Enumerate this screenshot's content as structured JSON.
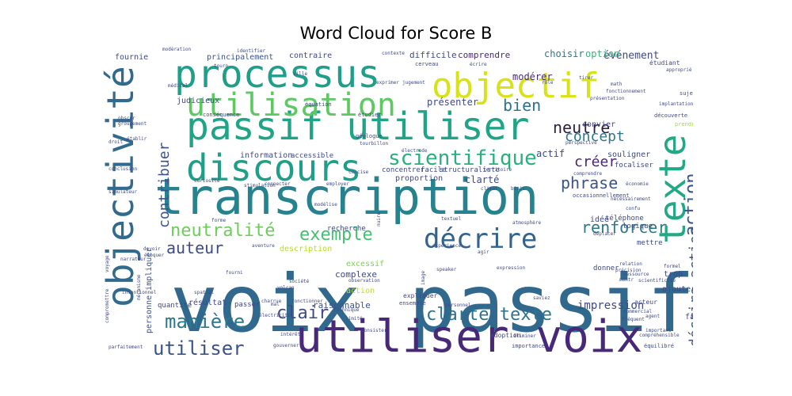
{
  "chart_data": {
    "type": "wordcloud",
    "title": "Word Cloud for Score B",
    "colormap": "viridis",
    "words": [
      {
        "text": "voix passif",
        "size": 100,
        "color": "#31688e"
      },
      {
        "text": "transcription",
        "size": 62,
        "color": "#26828e"
      },
      {
        "text": "utiliser voix",
        "size": 56,
        "color": "#482878"
      },
      {
        "text": "passif utiliser",
        "size": 48,
        "color": "#20a486"
      },
      {
        "text": "processus",
        "size": 48,
        "color": "#1f9e89"
      },
      {
        "text": "objectivité",
        "size": 46,
        "color": "#306a8e"
      },
      {
        "text": "discours",
        "size": 46,
        "color": "#1f9e89"
      },
      {
        "text": "texte",
        "size": 46,
        "color": "#22a884"
      },
      {
        "text": "objectif",
        "size": 44,
        "color": "#d8e219"
      },
      {
        "text": "utilisation",
        "size": 40,
        "color": "#5ec962"
      },
      {
        "text": "décrire",
        "size": 34,
        "color": "#33638d"
      },
      {
        "text": "scientifique",
        "size": 26,
        "color": "#2ab07f"
      },
      {
        "text": "manière",
        "size": 24,
        "color": "#2a788e"
      },
      {
        "text": "utiliser",
        "size": 24,
        "color": "#3b528b"
      },
      {
        "text": "neutralité",
        "size": 22,
        "color": "#6ccd5a"
      },
      {
        "text": "exemple",
        "size": 22,
        "color": "#44bf70"
      },
      {
        "text": "clarté texte",
        "size": 22,
        "color": "#2c728e"
      },
      {
        "text": "clair",
        "size": 22,
        "color": "#3e4989"
      },
      {
        "text": "neutre",
        "size": 20,
        "color": "#2d1e3e"
      },
      {
        "text": "bien",
        "size": 20,
        "color": "#2c728e"
      },
      {
        "text": "phrase",
        "size": 20,
        "color": "#3b528b"
      },
      {
        "text": "auteur",
        "size": 20,
        "color": "#3e4a89"
      },
      {
        "text": "renforcer",
        "size": 20,
        "color": "#2a788e"
      },
      {
        "text": "concept",
        "size": 18,
        "color": "#2a788e"
      },
      {
        "text": "créer",
        "size": 18,
        "color": "#482475"
      },
      {
        "text": "action",
        "size": 22,
        "color": "#3b528b"
      },
      {
        "text": "décrire action",
        "size": 18,
        "color": "#3b528b"
      },
      {
        "text": "contribuer",
        "size": 18,
        "color": "#3b528b"
      },
      {
        "text": "impression",
        "size": 14,
        "color": "#3e4989"
      },
      {
        "text": "événement",
        "size": 13,
        "color": "#3e4989"
      },
      {
        "text": "présenter",
        "size": 12,
        "color": "#3e4989"
      },
      {
        "text": "modérer",
        "size": 12,
        "color": "#482878"
      },
      {
        "text": "choisir",
        "size": 12,
        "color": "#2a788e"
      },
      {
        "text": "option",
        "size": 12,
        "color": "#35b779"
      },
      {
        "text": "difficile",
        "size": 11,
        "color": "#3e4989"
      },
      {
        "text": "comprendre",
        "size": 11,
        "color": "#482878"
      },
      {
        "text": "principalement",
        "size": 10,
        "color": "#3b528b"
      },
      {
        "text": "contraire",
        "size": 10,
        "color": "#3e4989"
      },
      {
        "text": "fournie",
        "size": 10,
        "color": "#3e4989"
      },
      {
        "text": "judicieux",
        "size": 10,
        "color": "#3e4989"
      },
      {
        "text": "information",
        "size": 10,
        "color": "#3e4989"
      },
      {
        "text": "actif",
        "size": 12,
        "color": "#3e4989"
      },
      {
        "text": "accessible",
        "size": 9,
        "color": "#3e4989"
      },
      {
        "text": "convier",
        "size": 10,
        "color": "#3e4989"
      },
      {
        "text": "souligner",
        "size": 10,
        "color": "#3e4989"
      },
      {
        "text": "focaliser",
        "size": 9,
        "color": "#3e4989"
      },
      {
        "text": "concentrer",
        "size": 9,
        "color": "#3e4989"
      },
      {
        "text": "facile",
        "size": 9,
        "color": "#3e4989"
      },
      {
        "text": "structuraliste",
        "size": 9,
        "color": "#3e4989"
      },
      {
        "text": "proportion",
        "size": 10,
        "color": "#3e4989"
      },
      {
        "text": "clarté",
        "size": 12,
        "color": "#3e4989"
      },
      {
        "text": "personne impliquer",
        "size": 10,
        "color": "#3b528b"
      },
      {
        "text": "recherche",
        "size": 9,
        "color": "#3e4989"
      },
      {
        "text": "idée",
        "size": 10,
        "color": "#3e4989"
      },
      {
        "text": "téléphone",
        "size": 9,
        "color": "#3e4989"
      },
      {
        "text": "logique",
        "size": 9,
        "color": "#3e4989"
      },
      {
        "text": "description",
        "size": 10,
        "color": "#b5de2b"
      },
      {
        "text": "excessif",
        "size": 10,
        "color": "#7ad151"
      },
      {
        "text": "complexe",
        "size": 11,
        "color": "#3e4989"
      },
      {
        "text": "action",
        "size": 10,
        "color": "#c2df23"
      },
      {
        "text": "raisonnable",
        "size": 11,
        "color": "#3b528b"
      },
      {
        "text": "résultat",
        "size": 10,
        "color": "#3e4989"
      },
      {
        "text": "passer",
        "size": 9,
        "color": "#3e4989"
      },
      {
        "text": "quantité",
        "size": 9,
        "color": "#3e4989"
      },
      {
        "text": "mettre",
        "size": 9,
        "color": "#3e4989"
      },
      {
        "text": "donner",
        "size": 9,
        "color": "#3e4989"
      },
      {
        "text": "trop",
        "size": 10,
        "color": "#3e4989"
      },
      {
        "text": "ajouter",
        "size": 10,
        "color": "#3e4989"
      },
      {
        "text": "fait",
        "size": 10,
        "color": "#3e4989"
      },
      {
        "text": "acteur",
        "size": 8,
        "color": "#3e4989"
      },
      {
        "text": "expliquer",
        "size": 8,
        "color": "#3e4989"
      },
      {
        "text": "adoption",
        "size": 8,
        "color": "#3e4989"
      },
      {
        "text": "importance",
        "size": 7,
        "color": "#3e4989"
      },
      {
        "text": "équilibré",
        "size": 7,
        "color": "#3e4989"
      },
      {
        "text": "étudiant",
        "size": 8,
        "color": "#3e4989"
      },
      {
        "text": "sujet",
        "size": 7,
        "color": "#3e4989"
      },
      {
        "text": "découverte",
        "size": 7,
        "color": "#3e4989"
      },
      {
        "text": "prendre",
        "size": 7,
        "color": "#a0da39"
      },
      {
        "text": "conséquence",
        "size": 7,
        "color": "#3e4989"
      },
      {
        "text": "équation",
        "size": 7,
        "color": "#3e4989"
      },
      {
        "text": "étudier",
        "size": 7,
        "color": "#3e4989"
      },
      {
        "text": "géologue",
        "size": 7,
        "color": "#3e4989"
      },
      {
        "text": "tourbillon",
        "size": 6,
        "color": "#3e4989"
      },
      {
        "text": "électrode",
        "size": 6,
        "color": "#3e4989"
      },
      {
        "text": "curiosité",
        "size": 6,
        "color": "#3e4989"
      },
      {
        "text": "stimulation",
        "size": 6,
        "color": "#3e4989"
      },
      {
        "text": "nuire",
        "size": 6,
        "color": "#3e4989"
      },
      {
        "text": "climat",
        "size": 6,
        "color": "#3e4989"
      },
      {
        "text": "modélise",
        "size": 6,
        "color": "#3e4989"
      },
      {
        "text": "forme",
        "size": 6,
        "color": "#3e4989"
      },
      {
        "text": "fourni",
        "size": 6,
        "color": "#3e4989"
      },
      {
        "text": "observation",
        "size": 6,
        "color": "#3e4989"
      },
      {
        "text": "ensemble",
        "size": 7,
        "color": "#3e4989"
      },
      {
        "text": "gouverner",
        "size": 6,
        "color": "#3e4989"
      },
      {
        "text": "technique",
        "size": 6,
        "color": "#3e4989"
      },
      {
        "text": "intérêt",
        "size": 6,
        "color": "#3e4989"
      },
      {
        "text": "saviez",
        "size": 6,
        "color": "#3e4989"
      },
      {
        "text": "éliminer",
        "size": 6,
        "color": "#3e4989"
      },
      {
        "text": "fréquent",
        "size": 6,
        "color": "#3e4989"
      },
      {
        "text": "formel",
        "size": 6,
        "color": "#3e4989"
      },
      {
        "text": "précision",
        "size": 6,
        "color": "#3e4989"
      },
      {
        "text": "ressource",
        "size": 6,
        "color": "#3e4989"
      },
      {
        "text": "montr",
        "size": 6,
        "color": "#3e4989"
      },
      {
        "text": "scientificité",
        "size": 6,
        "color": "#3e4989"
      },
      {
        "text": "relation",
        "size": 6,
        "color": "#3e4989"
      },
      {
        "text": "expression",
        "size": 6,
        "color": "#3e4989"
      },
      {
        "text": "speaker",
        "size": 6,
        "color": "#3e4989"
      },
      {
        "text": "mécanisme",
        "size": 6,
        "color": "#3e4989"
      },
      {
        "text": "intentionnel",
        "size": 6,
        "color": "#3e4989"
      },
      {
        "text": "spatial",
        "size": 6,
        "color": "#3e4989"
      },
      {
        "text": "narrateur",
        "size": 6,
        "color": "#3e4989"
      },
      {
        "text": "devoir",
        "size": 6,
        "color": "#3e4989"
      },
      {
        "text": "évoquer",
        "size": 6,
        "color": "#3e4989"
      },
      {
        "text": "voyage",
        "size": 6,
        "color": "#3e4989"
      },
      {
        "text": "mal",
        "size": 6,
        "color": "#3e4989"
      },
      {
        "text": "électricité",
        "size": 6,
        "color": "#3e4989"
      },
      {
        "text": "société",
        "size": 6,
        "color": "#3e4989"
      },
      {
        "text": "volcan",
        "size": 6,
        "color": "#3e4989"
      },
      {
        "text": "parfaitement",
        "size": 6,
        "color": "#3e4989"
      },
      {
        "text": "compromettre",
        "size": 6,
        "color": "#3e4989"
      },
      {
        "text": "simulateur",
        "size": 6,
        "color": "#3e4989"
      },
      {
        "text": "conclusion",
        "size": 6,
        "color": "#3e4989"
      },
      {
        "text": "droit",
        "size": 6,
        "color": "#3e4989"
      },
      {
        "text": "établir",
        "size": 6,
        "color": "#3e4989"
      },
      {
        "text": "groupement",
        "size": 6,
        "color": "#3e4989"
      },
      {
        "text": "obscur",
        "size": 6,
        "color": "#3e4989"
      },
      {
        "text": "médical",
        "size": 6,
        "color": "#3e4989"
      },
      {
        "text": "modération",
        "size": 6,
        "color": "#3e4989"
      },
      {
        "text": "identifier",
        "size": 6,
        "color": "#3e4989"
      },
      {
        "text": "tourn",
        "size": 6,
        "color": "#3e4989"
      },
      {
        "text": "ville",
        "size": 6,
        "color": "#3e4989"
      },
      {
        "text": "contexte",
        "size": 6,
        "color": "#3e4989"
      },
      {
        "text": "exprimer",
        "size": 6,
        "color": "#3e4989"
      },
      {
        "text": "jugement",
        "size": 6,
        "color": "#3e4989"
      },
      {
        "text": "cerveau",
        "size": 7,
        "color": "#3e4989"
      },
      {
        "text": "écrire",
        "size": 6,
        "color": "#3e4989"
      },
      {
        "text": "rôle",
        "size": 6,
        "color": "#3e4989"
      },
      {
        "text": "présentation",
        "size": 6,
        "color": "#3e4989"
      },
      {
        "text": "fonctionnement",
        "size": 6,
        "color": "#3e4989"
      },
      {
        "text": "implantation",
        "size": 6,
        "color": "#3e4989"
      },
      {
        "text": "math",
        "size": 6,
        "color": "#3e4989"
      },
      {
        "text": "tirer",
        "size": 6,
        "color": "#3e4989"
      },
      {
        "text": "approprié",
        "size": 6,
        "color": "#3e4989"
      },
      {
        "text": "perspective",
        "size": 6,
        "color": "#3e4989"
      },
      {
        "text": "comprendre",
        "size": 6,
        "color": "#3e4989"
      },
      {
        "text": "occasionnellement",
        "size": 7,
        "color": "#3e4989"
      },
      {
        "text": "économie",
        "size": 6,
        "color": "#3e4989"
      },
      {
        "text": "nécessairement",
        "size": 6,
        "color": "#3e4989"
      },
      {
        "text": "confu",
        "size": 6,
        "color": "#3e4989"
      },
      {
        "text": "déplacer",
        "size": 6,
        "color": "#3e4989"
      },
      {
        "text": "atmosphère",
        "size": 6,
        "color": "#3e4989"
      },
      {
        "text": "textuel",
        "size": 6,
        "color": "#3e4989"
      },
      {
        "text": "biais",
        "size": 6,
        "color": "#3e4989"
      },
      {
        "text": "employer",
        "size": 6,
        "color": "#3e4989"
      },
      {
        "text": "concise",
        "size": 6,
        "color": "#3e4989"
      },
      {
        "text": "connecter",
        "size": 6,
        "color": "#3e4989"
      },
      {
        "text": "territoire",
        "size": 6,
        "color": "#3e4989"
      },
      {
        "text": "agir",
        "size": 6,
        "color": "#3e4989"
      },
      {
        "text": "expérience",
        "size": 6,
        "color": "#3e4989"
      },
      {
        "text": "personnel",
        "size": 6,
        "color": "#3e4989"
      },
      {
        "text": "commercial",
        "size": 6,
        "color": "#3e4989"
      },
      {
        "text": "agent",
        "size": 6,
        "color": "#3e4989"
      },
      {
        "text": "important",
        "size": 6,
        "color": "#3e4989"
      },
      {
        "text": "compréhensible",
        "size": 6,
        "color": "#3e4989"
      },
      {
        "text": "aventure",
        "size": 6,
        "color": "#3e4989"
      },
      {
        "text": "fonctionner",
        "size": 6,
        "color": "#3e4989"
      },
      {
        "text": "limité",
        "size": 6,
        "color": "#3e4989"
      },
      {
        "text": "consister",
        "size": 6,
        "color": "#3e4989"
      },
      {
        "text": "charrue",
        "size": 6,
        "color": "#3e4989"
      },
      {
        "text": "image",
        "size": 6,
        "color": "#3e4989"
      }
    ]
  }
}
